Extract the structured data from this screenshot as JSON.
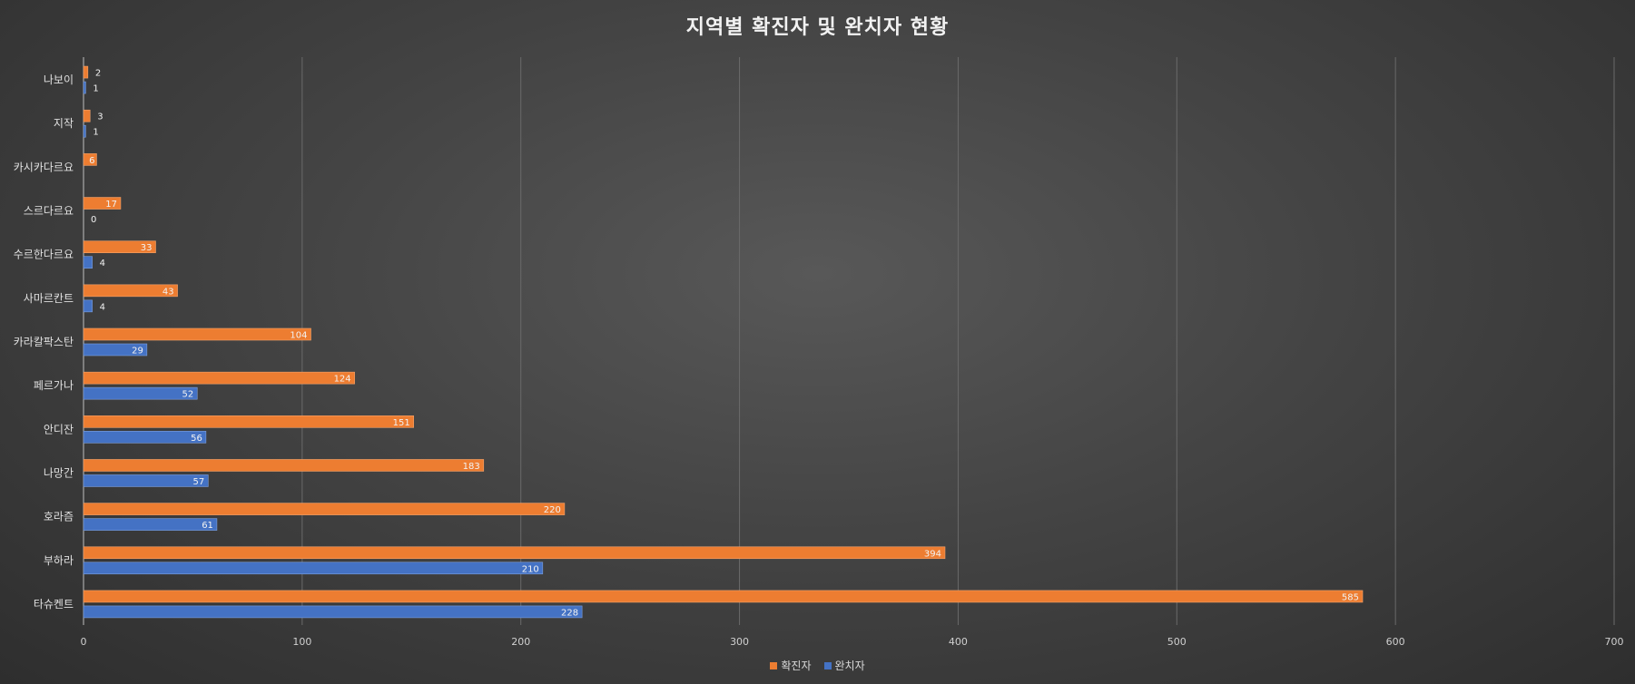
{
  "chart_data": {
    "type": "bar",
    "orientation": "horizontal",
    "title": "지역별 확진자 및 완치자 현황",
    "categories": [
      "나보이",
      "지작",
      "카시카다르요",
      "스르다르요",
      "수르한다르요",
      "사마르칸트",
      "카라칼팍스탄",
      "페르가나",
      "안디잔",
      "나망간",
      "호라즘",
      "부하라",
      "타슈켄트"
    ],
    "series": [
      {
        "name": "확진자",
        "color": "#ed7d31",
        "values": [
          2,
          3,
          6,
          17,
          33,
          43,
          104,
          124,
          151,
          183,
          220,
          394,
          585
        ]
      },
      {
        "name": "완치자",
        "color": "#4472c4",
        "values": [
          1,
          1,
          null,
          0,
          4,
          4,
          29,
          52,
          56,
          57,
          61,
          210,
          228
        ]
      }
    ],
    "xlim": [
      0,
      700
    ],
    "xticks": [
      "0",
      "100",
      "200",
      "300",
      "400",
      "500",
      "600",
      "700"
    ],
    "grid": true,
    "legend_position": "bottom"
  }
}
